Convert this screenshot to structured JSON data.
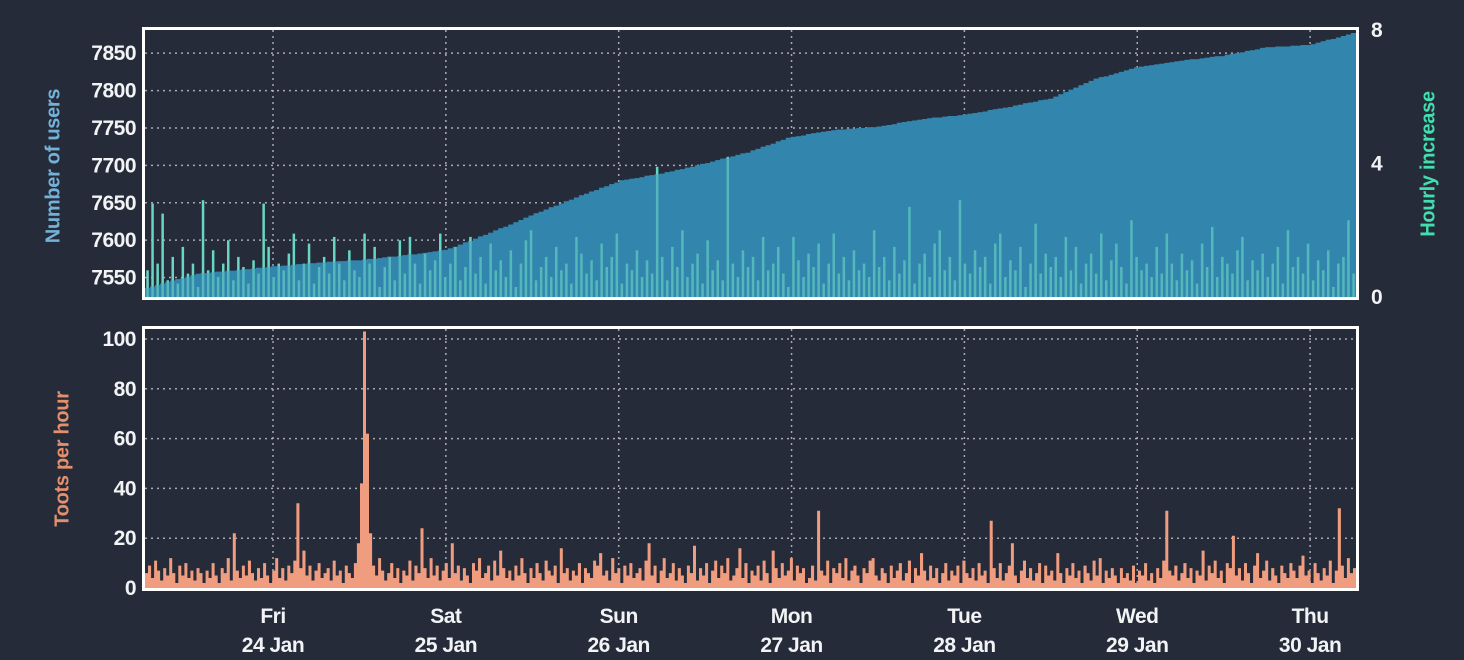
{
  "colors": {
    "background": "#262b3a",
    "frame": "#ffffff",
    "grid": "#c7cad2",
    "tick_text": "#f2f3f5"
  },
  "x_axis": {
    "days": [
      {
        "weekday": "Fri",
        "date": "24 Jan"
      },
      {
        "weekday": "Sat",
        "date": "25 Jan"
      },
      {
        "weekday": "Sun",
        "date": "26 Jan"
      },
      {
        "weekday": "Mon",
        "date": "27 Jan"
      },
      {
        "weekday": "Tue",
        "date": "28 Jan"
      },
      {
        "weekday": "Wed",
        "date": "29 Jan"
      },
      {
        "weekday": "Thu",
        "date": "30 Jan"
      }
    ]
  },
  "chart_data": [
    {
      "type": "area",
      "grid": "dotted",
      "legend": "none",
      "left_axis": {
        "label": "Number of users",
        "color": "#72b2d8",
        "ticks": [
          7550,
          7600,
          7650,
          7700,
          7750,
          7800,
          7850
        ],
        "min": 7524,
        "max": 7881
      },
      "right_axis": {
        "label": "Hourly increase",
        "color": "#42dfae",
        "ticks": [
          0,
          4,
          8
        ],
        "min": 0,
        "max": 8
      },
      "series": [
        {
          "name": "Number of users",
          "type": "step-area",
          "axis": "left",
          "color": "#3287ad",
          "overlay_opacity": 0.38,
          "points": [
            [
              0,
              7536
            ],
            [
              0.045,
              7556
            ],
            [
              0.075,
              7560
            ],
            [
              0.106,
              7565
            ],
            [
              0.141,
              7570
            ],
            [
              0.178,
              7574
            ],
            [
              0.214,
              7580
            ],
            [
              0.25,
              7588
            ],
            [
              0.285,
              7610
            ],
            [
              0.321,
              7635
            ],
            [
              0.357,
              7658
            ],
            [
              0.393,
              7680
            ],
            [
              0.428,
              7690
            ],
            [
              0.463,
              7703
            ],
            [
              0.498,
              7718
            ],
            [
              0.533,
              7738
            ],
            [
              0.569,
              7748
            ],
            [
              0.605,
              7752
            ],
            [
              0.64,
              7762
            ],
            [
              0.676,
              7768
            ],
            [
              0.712,
              7778
            ],
            [
              0.748,
              7790
            ],
            [
              0.783,
              7815
            ],
            [
              0.818,
              7831
            ],
            [
              0.854,
              7840
            ],
            [
              0.89,
              7847
            ],
            [
              0.926,
              7858
            ],
            [
              0.963,
              7862
            ],
            [
              1,
              7878
            ]
          ]
        },
        {
          "name": "Hourly increase",
          "type": "bars",
          "axis": "right",
          "color": "#68d6c4",
          "values": [
            0.8,
            2.8,
            1,
            2.5,
            0.5,
            1.2,
            0.4,
            1.5,
            0.7,
            1,
            0.3,
            2.9,
            0.8,
            1.4,
            0.6,
            1,
            1.7,
            0.5,
            1.2,
            0.9,
            0.4,
            1.1,
            0.7,
            2.8,
            1.5,
            0.6,
            1,
            0.8,
            1.3,
            1.9,
            0.5,
            1,
            1.6,
            0.4,
            0.9,
            1.2,
            0.7,
            1.8,
            1,
            0.5,
            1.4,
            0.8,
            0.6,
            1.9,
            1,
            1.5,
            0.3,
            0.9,
            1.2,
            0.5,
            1.7,
            0.7,
            1.8,
            1,
            0.4,
            1.3,
            0.8,
            1.1,
            1.9,
            0.6,
            1,
            1.5,
            0.5,
            0.9,
            1.8,
            0.7,
            1.2,
            0.4,
            1.6,
            0.8,
            1.1,
            0.6,
            1.4,
            0.3,
            1,
            1.7,
            2.0,
            0.5,
            0.9,
            1.2,
            0.6,
            1.5,
            0.8,
            1,
            0.4,
            1.8,
            1.3,
            0.7,
            1.1,
            0.5,
            1.6,
            0.9,
            1.2,
            1.9,
            0.4,
            1,
            0.8,
            1.4,
            0.6,
            1.1,
            0.7,
            3.9,
            1.2,
            0.5,
            1.5,
            0.9,
            2.0,
            0.6,
            1,
            1.3,
            0.4,
            1.7,
            0.8,
            1.1,
            0.5,
            4.2,
            1,
            0.6,
            1.4,
            0.9,
            1.2,
            0.5,
            1.8,
            0.8,
            1,
            1.5,
            0.7,
            0.3,
            1.8,
            1.1,
            0.6,
            1.3,
            0.9,
            1.6,
            0.4,
            1,
            1.9,
            0.7,
            1.2,
            0.5,
            1.4,
            0.8,
            1,
            0.6,
            2.0,
            0.9,
            1.2,
            0.5,
            1.5,
            0.7,
            1.1,
            2.7,
            0.4,
            1,
            1.3,
            0.6,
            1.6,
            2.0,
            0.8,
            1.2,
            0.5,
            2.9,
            1,
            0.7,
            1.4,
            0.9,
            1.2,
            0.4,
            1.6,
            1.9,
            0.6,
            1.1,
            0.8,
            1.5,
            0.3,
            1,
            2.2,
            0.7,
            1.3,
            0.9,
            1.2,
            0.6,
            1.8,
            0.8,
            1.5,
            0.4,
            1,
            1.3,
            0.7,
            1.9,
            0.5,
            1.1,
            1.6,
            0.9,
            0.4,
            2.3,
            1.2,
            0.8,
            1,
            0.6,
            1.5,
            0.7,
            1.9,
            1,
            0.5,
            1.3,
            0.8,
            1.1,
            0.4,
            1.6,
            0.9,
            2.1,
            0.6,
            1.2,
            1,
            0.7,
            1.4,
            1.8,
            0.5,
            1.1,
            0.8,
            1.3,
            0.6,
            1,
            1.5,
            0.4,
            2.0,
            0.9,
            1.2,
            0.7,
            1.6,
            0.5,
            1.1,
            0.8,
            1.4,
            0.3,
            1,
            1.2,
            2.3,
            0.7
          ]
        }
      ]
    },
    {
      "type": "area",
      "grid": "dotted",
      "legend": "none",
      "left_axis": {
        "label": "Toots per hour",
        "color": "#e5906c",
        "ticks": [
          0,
          20,
          40,
          60,
          80,
          100
        ],
        "min": 0,
        "max": 104
      },
      "series": [
        {
          "name": "Toots per hour",
          "type": "step-area",
          "color": "#ef9d7e",
          "values": [
            6,
            9,
            4,
            11,
            7,
            3,
            8,
            5,
            12,
            6,
            2,
            9,
            5,
            10,
            4,
            7,
            3,
            8,
            6,
            2,
            7,
            4,
            10,
            5,
            2,
            8,
            6,
            12,
            3,
            22,
            7,
            4,
            9,
            5,
            11,
            6,
            3,
            8,
            4,
            10,
            5,
            2,
            7,
            12,
            4,
            8,
            3,
            9,
            6,
            11,
            34,
            8,
            15,
            5,
            9,
            3,
            7,
            10,
            4,
            6,
            8,
            3,
            11,
            5,
            7,
            2,
            9,
            6,
            4,
            10,
            18,
            42,
            103,
            62,
            22,
            9,
            5,
            12,
            7,
            3,
            6,
            10,
            4,
            8,
            2,
            7,
            5,
            11,
            3,
            9,
            6,
            24,
            8,
            4,
            12,
            5,
            9,
            3,
            7,
            10,
            4,
            18,
            6,
            9,
            3,
            8,
            5,
            2,
            10,
            7,
            12,
            4,
            6,
            9,
            3,
            11,
            5,
            15,
            8,
            4,
            7,
            3,
            9,
            5,
            12,
            6,
            2,
            8,
            4,
            10,
            6,
            3,
            11,
            7,
            5,
            9,
            2,
            16,
            6,
            8,
            3,
            7,
            5,
            10,
            2,
            8,
            6,
            4,
            11,
            9,
            14,
            5,
            7,
            3,
            12,
            6,
            8,
            2,
            9,
            5,
            10,
            4,
            6,
            8,
            3,
            11,
            18,
            5,
            9,
            2,
            7,
            12,
            4,
            6,
            10,
            3,
            8,
            5,
            2,
            9,
            6,
            17,
            3,
            8,
            5,
            10,
            2,
            7,
            11,
            4,
            9,
            6,
            12,
            3,
            5,
            8,
            16,
            4,
            10,
            2,
            7,
            5,
            9,
            3,
            11,
            6,
            2,
            15,
            8,
            4,
            10,
            5,
            7,
            12,
            3,
            9,
            6,
            8,
            2,
            4,
            9,
            3,
            31,
            7,
            5,
            11,
            2,
            8,
            6,
            10,
            4,
            12,
            3,
            7,
            9,
            5,
            2,
            8,
            6,
            11,
            12,
            5,
            3,
            8,
            6,
            2,
            9,
            4,
            7,
            10,
            3,
            6,
            11,
            2,
            8,
            5,
            14,
            7,
            3,
            9,
            4,
            8,
            2,
            6,
            10,
            3,
            7,
            5,
            9,
            2,
            11,
            6,
            4,
            8,
            3,
            10,
            5,
            7,
            2,
            27,
            8,
            4,
            10,
            3,
            6,
            9,
            18,
            5,
            2,
            7,
            11,
            4,
            8,
            3,
            6,
            10,
            2,
            9,
            5,
            7,
            3,
            14,
            6,
            2,
            8,
            5,
            10,
            4,
            7,
            2,
            9,
            6,
            3,
            11,
            5,
            12,
            2,
            7,
            4,
            8,
            5,
            2,
            8,
            4,
            6,
            3,
            9,
            2,
            7,
            5,
            10,
            3,
            6,
            2,
            8,
            4,
            11,
            31,
            7,
            5,
            9,
            3,
            6,
            10,
            4,
            8,
            2,
            7,
            5,
            15,
            3,
            9,
            6,
            11,
            4,
            7,
            2,
            10,
            8,
            21,
            5,
            8,
            3,
            10,
            6,
            2,
            9,
            14,
            4,
            7,
            11,
            3,
            8,
            5,
            2,
            9,
            6,
            4,
            10,
            7,
            4,
            9,
            13,
            5,
            7,
            2,
            10,
            6,
            3,
            8,
            5,
            11,
            2,
            7,
            32,
            9,
            4,
            12,
            6,
            8
          ]
        }
      ]
    }
  ]
}
